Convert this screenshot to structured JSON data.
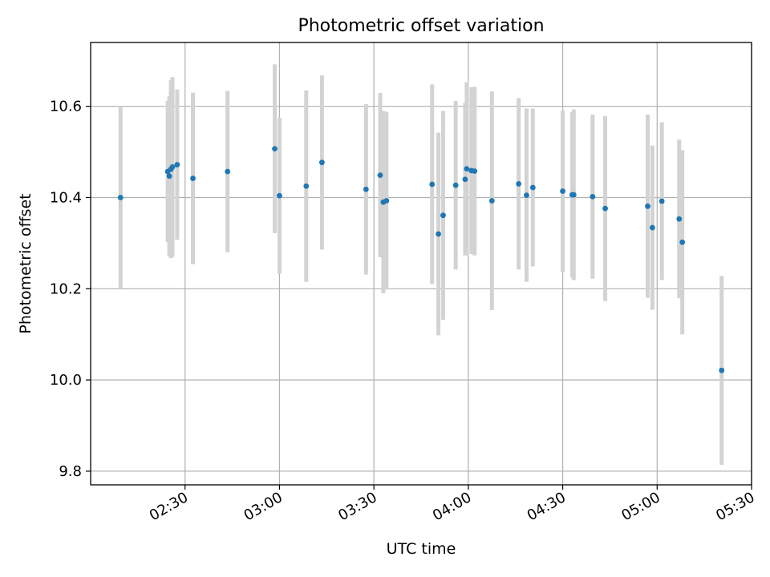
{
  "chart_data": {
    "type": "scatter",
    "title": "Photometric offset variation",
    "xlabel": "UTC time",
    "ylabel": "Photometric offset",
    "grid": true,
    "colors": {
      "point": "#1f77b4",
      "errorbar": "#d3d3d3",
      "grid": "#b0b0b0"
    },
    "xlim": [
      "02:00",
      "05:30"
    ],
    "ylim": [
      9.77,
      10.74
    ],
    "x_ticks": [
      "02:30",
      "03:00",
      "03:30",
      "04:00",
      "04:30",
      "05:00",
      "05:30"
    ],
    "y_ticks": [
      "9.8",
      "10.0",
      "10.2",
      "10.4",
      "10.6"
    ],
    "points": [
      {
        "x": "02:09:30",
        "y": 10.4,
        "yerr": 0.2
      },
      {
        "x": "02:24:30",
        "y": 10.457,
        "yerr": 0.155
      },
      {
        "x": "02:25:00",
        "y": 10.447,
        "yerr": 0.175
      },
      {
        "x": "02:25:30",
        "y": 10.462,
        "yerr": 0.195
      },
      {
        "x": "02:26:00",
        "y": 10.467,
        "yerr": 0.197
      },
      {
        "x": "02:27:30",
        "y": 10.472,
        "yerr": 0.165
      },
      {
        "x": "02:32:30",
        "y": 10.442,
        "yerr": 0.188
      },
      {
        "x": "02:43:30",
        "y": 10.457,
        "yerr": 0.177
      },
      {
        "x": "02:58:30",
        "y": 10.507,
        "yerr": 0.185
      },
      {
        "x": "03:00:00",
        "y": 10.404,
        "yerr": 0.171
      },
      {
        "x": "03:08:30",
        "y": 10.425,
        "yerr": 0.21
      },
      {
        "x": "03:13:30",
        "y": 10.477,
        "yerr": 0.191
      },
      {
        "x": "03:27:30",
        "y": 10.418,
        "yerr": 0.187
      },
      {
        "x": "03:32:00",
        "y": 10.449,
        "yerr": 0.18
      },
      {
        "x": "03:33:00",
        "y": 10.39,
        "yerr": 0.2
      },
      {
        "x": "03:34:00",
        "y": 10.393,
        "yerr": 0.195
      },
      {
        "x": "03:48:30",
        "y": 10.429,
        "yerr": 0.219
      },
      {
        "x": "03:50:30",
        "y": 10.32,
        "yerr": 0.222
      },
      {
        "x": "03:52:00",
        "y": 10.361,
        "yerr": 0.229
      },
      {
        "x": "03:56:00",
        "y": 10.427,
        "yerr": 0.185
      },
      {
        "x": "03:59:00",
        "y": 10.44,
        "yerr": 0.167
      },
      {
        "x": "03:59:30",
        "y": 10.463,
        "yerr": 0.19
      },
      {
        "x": "04:01:00",
        "y": 10.459,
        "yerr": 0.183
      },
      {
        "x": "04:02:00",
        "y": 10.458,
        "yerr": 0.185
      },
      {
        "x": "04:07:30",
        "y": 10.393,
        "yerr": 0.24
      },
      {
        "x": "04:16:00",
        "y": 10.43,
        "yerr": 0.188
      },
      {
        "x": "04:18:30",
        "y": 10.405,
        "yerr": 0.19
      },
      {
        "x": "04:20:30",
        "y": 10.422,
        "yerr": 0.173
      },
      {
        "x": "04:30:00",
        "y": 10.414,
        "yerr": 0.177
      },
      {
        "x": "04:33:00",
        "y": 10.406,
        "yerr": 0.181
      },
      {
        "x": "04:33:30",
        "y": 10.406,
        "yerr": 0.187
      },
      {
        "x": "04:39:30",
        "y": 10.402,
        "yerr": 0.18
      },
      {
        "x": "04:43:30",
        "y": 10.376,
        "yerr": 0.203
      },
      {
        "x": "04:57:00",
        "y": 10.381,
        "yerr": 0.201
      },
      {
        "x": "04:58:30",
        "y": 10.334,
        "yerr": 0.18
      },
      {
        "x": "05:01:30",
        "y": 10.392,
        "yerr": 0.173
      },
      {
        "x": "05:07:00",
        "y": 10.353,
        "yerr": 0.174
      },
      {
        "x": "05:08:00",
        "y": 10.302,
        "yerr": 0.202
      },
      {
        "x": "05:20:30",
        "y": 10.021,
        "yerr": 0.207
      }
    ]
  }
}
